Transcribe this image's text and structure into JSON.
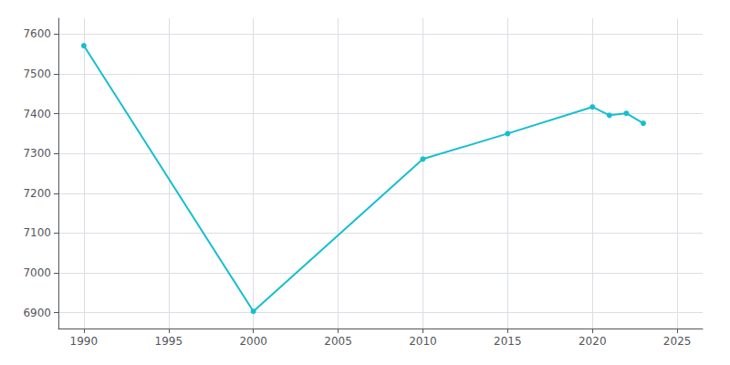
{
  "chart_data": {
    "type": "line",
    "x": [
      1990,
      2000,
      2010,
      2015,
      2020,
      2021,
      2022,
      2023
    ],
    "values": [
      7571,
      6903,
      7286,
      7350,
      7417,
      7396,
      7401,
      7376
    ],
    "color": "#17becf",
    "marker": "circle",
    "xlim": [
      1988.5,
      2026.5
    ],
    "xticks": [
      1990,
      1995,
      2000,
      2005,
      2010,
      2015,
      2020,
      2025
    ],
    "ylim": [
      6860,
      7640
    ],
    "yticks": [
      6900,
      7000,
      7100,
      7200,
      7300,
      7400,
      7500,
      7600
    ],
    "grid": true
  }
}
